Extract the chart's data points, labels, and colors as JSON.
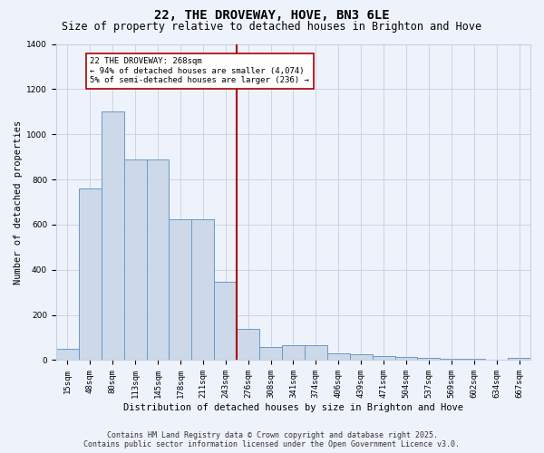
{
  "title": "22, THE DROVEWAY, HOVE, BN3 6LE",
  "subtitle": "Size of property relative to detached houses in Brighton and Hove",
  "xlabel": "Distribution of detached houses by size in Brighton and Hove",
  "ylabel": "Number of detached properties",
  "bar_labels": [
    "15sqm",
    "48sqm",
    "80sqm",
    "113sqm",
    "145sqm",
    "178sqm",
    "211sqm",
    "243sqm",
    "276sqm",
    "308sqm",
    "341sqm",
    "374sqm",
    "406sqm",
    "439sqm",
    "471sqm",
    "504sqm",
    "537sqm",
    "569sqm",
    "602sqm",
    "634sqm",
    "667sqm"
  ],
  "bar_values": [
    50,
    760,
    1100,
    890,
    890,
    625,
    625,
    345,
    140,
    60,
    65,
    65,
    28,
    25,
    18,
    15,
    10,
    5,
    5,
    3,
    10
  ],
  "bar_color": "#cdd9e8",
  "bar_edge_color": "#6699cc",
  "vline_color": "#aa0000",
  "annotation_text": "22 THE DROVEWAY: 268sqm\n← 94% of detached houses are smaller (4,074)\n5% of semi-detached houses are larger (236) →",
  "annotation_box_color": "#ffffff",
  "annotation_box_edge": "#aa0000",
  "ylim": [
    0,
    1400
  ],
  "yticks": [
    0,
    200,
    400,
    600,
    800,
    1000,
    1200,
    1400
  ],
  "background_color": "#eef2fb",
  "grid_color": "#c8cfe0",
  "footer_line1": "Contains HM Land Registry data © Crown copyright and database right 2025.",
  "footer_line2": "Contains public sector information licensed under the Open Government Licence v3.0.",
  "title_fontsize": 10,
  "subtitle_fontsize": 8.5,
  "xlabel_fontsize": 7.5,
  "ylabel_fontsize": 7.5,
  "tick_fontsize": 6.5,
  "footer_fontsize": 6
}
